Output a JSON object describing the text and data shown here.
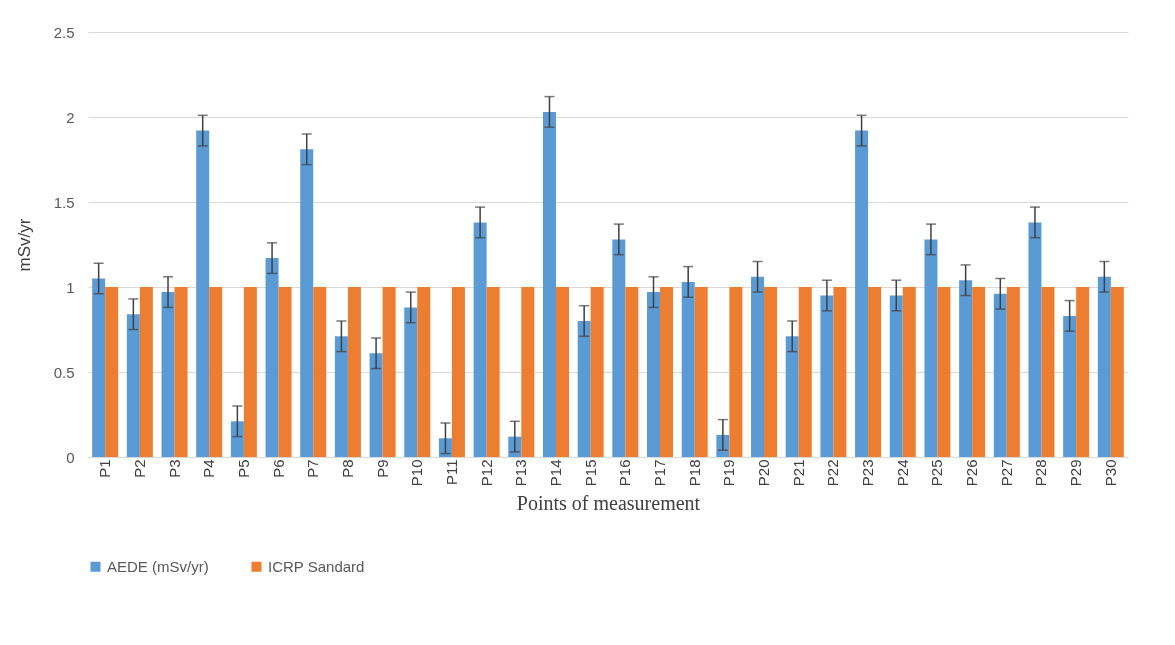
{
  "chart_data": {
    "type": "bar",
    "xlabel": "Points of measurement",
    "ylabel": "mSv/yr",
    "categories": [
      "P1",
      "P2",
      "P3",
      "P4",
      "P5",
      "P6",
      "P7",
      "P8",
      "P9",
      "P10",
      "P11",
      "P12",
      "P13",
      "P14",
      "P15",
      "P16",
      "P17",
      "P18",
      "P19",
      "P20",
      "P21",
      "P22",
      "P23",
      "P24",
      "P25",
      "P26",
      "P27",
      "P28",
      "P29",
      "P30"
    ],
    "series": [
      {
        "name": "AEDE (mSv/yr)",
        "color": "#5b9bd5",
        "values": [
          1.05,
          0.84,
          0.97,
          1.92,
          0.21,
          1.17,
          1.81,
          0.71,
          0.61,
          0.88,
          0.11,
          1.38,
          0.12,
          2.03,
          0.8,
          1.28,
          0.97,
          1.03,
          0.13,
          1.06,
          0.71,
          0.95,
          1.92,
          0.95,
          1.28,
          1.04,
          0.96,
          1.38,
          0.83,
          1.06
        ],
        "errors": [
          0.09,
          0.09,
          0.09,
          0.09,
          0.09,
          0.09,
          0.09,
          0.09,
          0.09,
          0.09,
          0.09,
          0.09,
          0.09,
          0.09,
          0.09,
          0.09,
          0.09,
          0.09,
          0.09,
          0.09,
          0.09,
          0.09,
          0.09,
          0.09,
          0.09,
          0.09,
          0.09,
          0.09,
          0.09,
          0.09
        ]
      },
      {
        "name": "ICRP Sandard",
        "color": "#ed7d31",
        "values": [
          1,
          1,
          1,
          1,
          1,
          1,
          1,
          1,
          1,
          1,
          1,
          1,
          1,
          1,
          1,
          1,
          1,
          1,
          1,
          1,
          1,
          1,
          1,
          1,
          1,
          1,
          1,
          1,
          1,
          1
        ]
      }
    ],
    "ylim": [
      0,
      2.5
    ],
    "yticks": [
      0,
      0.5,
      1,
      1.5,
      2,
      2.5
    ],
    "grid": "y",
    "legend": "bottom"
  }
}
